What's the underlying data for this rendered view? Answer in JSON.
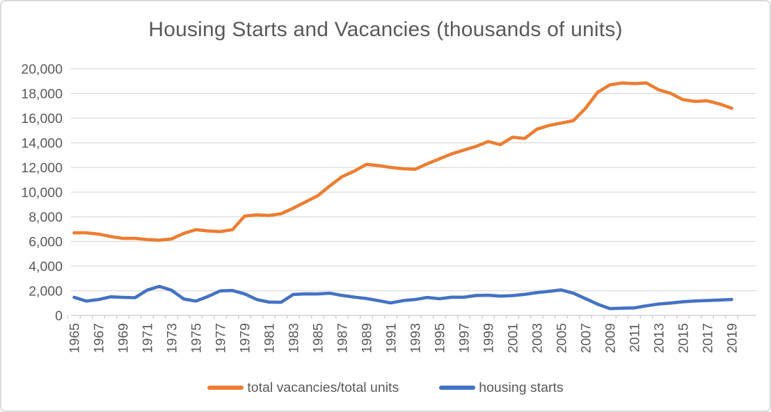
{
  "chart_data": {
    "type": "line",
    "title": "Housing Starts and Vacancies (thousands of units)",
    "x": [
      1965,
      1966,
      1967,
      1968,
      1969,
      1970,
      1971,
      1972,
      1973,
      1974,
      1975,
      1976,
      1977,
      1978,
      1979,
      1980,
      1981,
      1982,
      1983,
      1984,
      1985,
      1986,
      1987,
      1988,
      1989,
      1990,
      1991,
      1992,
      1993,
      1994,
      1995,
      1996,
      1997,
      1998,
      1999,
      2000,
      2001,
      2002,
      2003,
      2004,
      2005,
      2006,
      2007,
      2008,
      2009,
      2010,
      2011,
      2012,
      2013,
      2014,
      2015,
      2016,
      2017,
      2018,
      2019
    ],
    "xtick_labels": [
      "1965",
      "1967",
      "1969",
      "1971",
      "1973",
      "1975",
      "1977",
      "1979",
      "1981",
      "1983",
      "1985",
      "1987",
      "1989",
      "1991",
      "1993",
      "1995",
      "1997",
      "1999",
      "2001",
      "2003",
      "2005",
      "2007",
      "2009",
      "2011",
      "2013",
      "2015",
      "2017",
      "2019"
    ],
    "series": [
      {
        "name": "total vacancies/total units",
        "color": "#ED7D31",
        "values": [
          6700,
          6700,
          6600,
          6400,
          6250,
          6250,
          6150,
          6100,
          6200,
          6650,
          6950,
          6850,
          6800,
          6950,
          8050,
          8150,
          8100,
          8250,
          8700,
          9200,
          9700,
          10500,
          11250,
          11700,
          12250,
          12150,
          12000,
          11900,
          11850,
          12300,
          12700,
          13100,
          13400,
          13700,
          14100,
          13850,
          14450,
          14350,
          15100,
          15400,
          15600,
          15800,
          16800,
          18100,
          18700,
          18850,
          18800,
          18850,
          18300,
          18000,
          17500,
          17350,
          17400,
          17150,
          16800
        ]
      },
      {
        "name": "housing starts",
        "color": "#4472C4",
        "values": [
          1473,
          1165,
          1292,
          1508,
          1467,
          1434,
          2052,
          2357,
          2045,
          1338,
          1160,
          1538,
          1987,
          2020,
          1745,
          1292,
          1084,
          1062,
          1703,
          1750,
          1742,
          1805,
          1620,
          1488,
          1376,
          1193,
          1014,
          1200,
          1288,
          1457,
          1354,
          1477,
          1474,
          1617,
          1641,
          1569,
          1603,
          1705,
          1848,
          1956,
          2068,
          1801,
          1355,
          906,
          554,
          587,
          609,
          781,
          925,
          1003,
          1112,
          1174,
          1203,
          1250,
          1290
        ]
      }
    ],
    "ylim": [
      0,
      20000
    ],
    "ytick_interval": 2000,
    "ytick_labels": [
      "0",
      "2,000",
      "4,000",
      "6,000",
      "8,000",
      "10,000",
      "12,000",
      "14,000",
      "16,000",
      "18,000",
      "20,000"
    ],
    "grid": true,
    "legend_position": "bottom",
    "axis_text_color": "#595959",
    "gridline_color": "#D9D9D9",
    "axis_line_color": "#C9C9C9",
    "background_color": "#FFFFFF",
    "border_color": "#D9D9D9"
  }
}
